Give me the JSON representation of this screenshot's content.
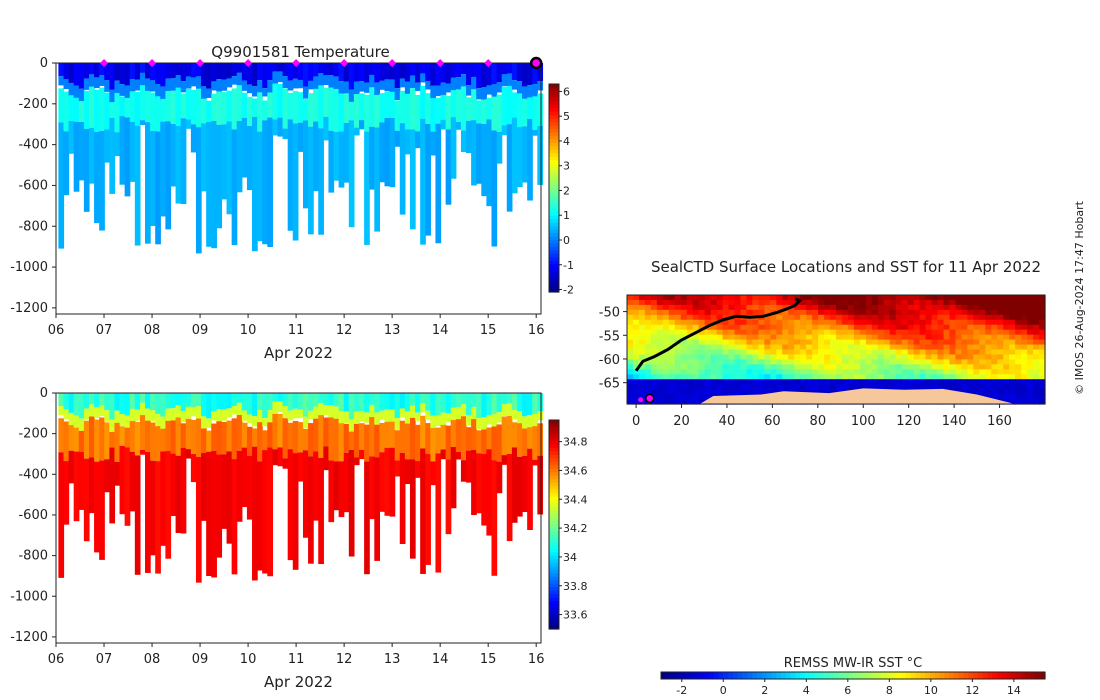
{
  "chart_data": [
    {
      "type": "heatmap",
      "title": "Q9901581  Temperature",
      "xlabel": "Apr 2022",
      "ylabel": "",
      "x_ticks": [
        "06",
        "07",
        "08",
        "09",
        "10",
        "11",
        "12",
        "13",
        "14",
        "15",
        "16"
      ],
      "x_range": [
        6.0,
        16.1
      ],
      "y_ticks": [
        0,
        -200,
        -400,
        -600,
        -800,
        -1000,
        -1200
      ],
      "y_range": [
        -1230,
        0
      ],
      "colorbar": {
        "ticks": [
          -2,
          -1,
          0,
          1,
          2,
          3,
          4,
          5,
          6
        ],
        "range": [
          -2.1,
          6.3
        ],
        "colormap": "jet"
      },
      "surface_markers_days": [
        7,
        8,
        9,
        10,
        11,
        12,
        13,
        14,
        15
      ],
      "current_marker_day": 16,
      "surface_layer_value": -1.2,
      "deep_value": 0.4,
      "mid_value": 1.2
    },
    {
      "type": "heatmap",
      "title": "",
      "xlabel": "Apr 2022",
      "ylabel": "",
      "x_ticks": [
        "06",
        "07",
        "08",
        "09",
        "10",
        "11",
        "12",
        "13",
        "14",
        "15",
        "16"
      ],
      "x_range": [
        6.0,
        16.1
      ],
      "y_ticks": [
        0,
        -200,
        -400,
        -600,
        -800,
        -1000,
        -1200
      ],
      "y_range": [
        -1230,
        0
      ],
      "colorbar": {
        "ticks": [
          33.6,
          33.8,
          34,
          34.2,
          34.4,
          34.6,
          34.8
        ],
        "tick_labels": [
          "33.6",
          "33.8",
          "34",
          "34.2",
          "34.4",
          "34.6",
          "34.8"
        ],
        "range": [
          33.5,
          34.95
        ],
        "colormap": "jet"
      },
      "surface_layer_value": 34.1,
      "deep_value": 34.78,
      "mid_value": 34.6
    },
    {
      "type": "heatmap",
      "title": "SealCTD Surface Locations and SST for 11 Apr 2022",
      "xlabel": "",
      "ylabel": "",
      "x_ticks": [
        0,
        20,
        40,
        60,
        80,
        100,
        120,
        140,
        160
      ],
      "x_range": [
        -4,
        180
      ],
      "y_ticks": [
        -50,
        -55,
        -60,
        -65
      ],
      "y_range": [
        -69.5,
        -46.5
      ],
      "colorbar": {
        "label": "REMSS MW-IR SST °C",
        "ticks": [
          -2,
          0,
          2,
          4,
          6,
          8,
          10,
          12,
          14
        ],
        "range": [
          -3,
          15.5
        ],
        "colormap": "jet"
      },
      "track": [
        [
          0,
          -62.5
        ],
        [
          3,
          -60.5
        ],
        [
          8,
          -59.5
        ],
        [
          14,
          -58
        ],
        [
          20,
          -56
        ],
        [
          26,
          -54.5
        ],
        [
          32,
          -53
        ],
        [
          38,
          -51.8
        ],
        [
          44,
          -51
        ],
        [
          50,
          -51.2
        ],
        [
          56,
          -51
        ],
        [
          62,
          -50.2
        ],
        [
          66,
          -49.5
        ],
        [
          70,
          -48.7
        ],
        [
          72,
          -47.7
        ],
        [
          70,
          -47.3
        ]
      ],
      "positions": [
        [
          2,
          -68.6
        ],
        [
          6,
          -68.3
        ]
      ]
    }
  ],
  "credit": "© IMOS 26-Aug-2024 17:47 Hobart"
}
